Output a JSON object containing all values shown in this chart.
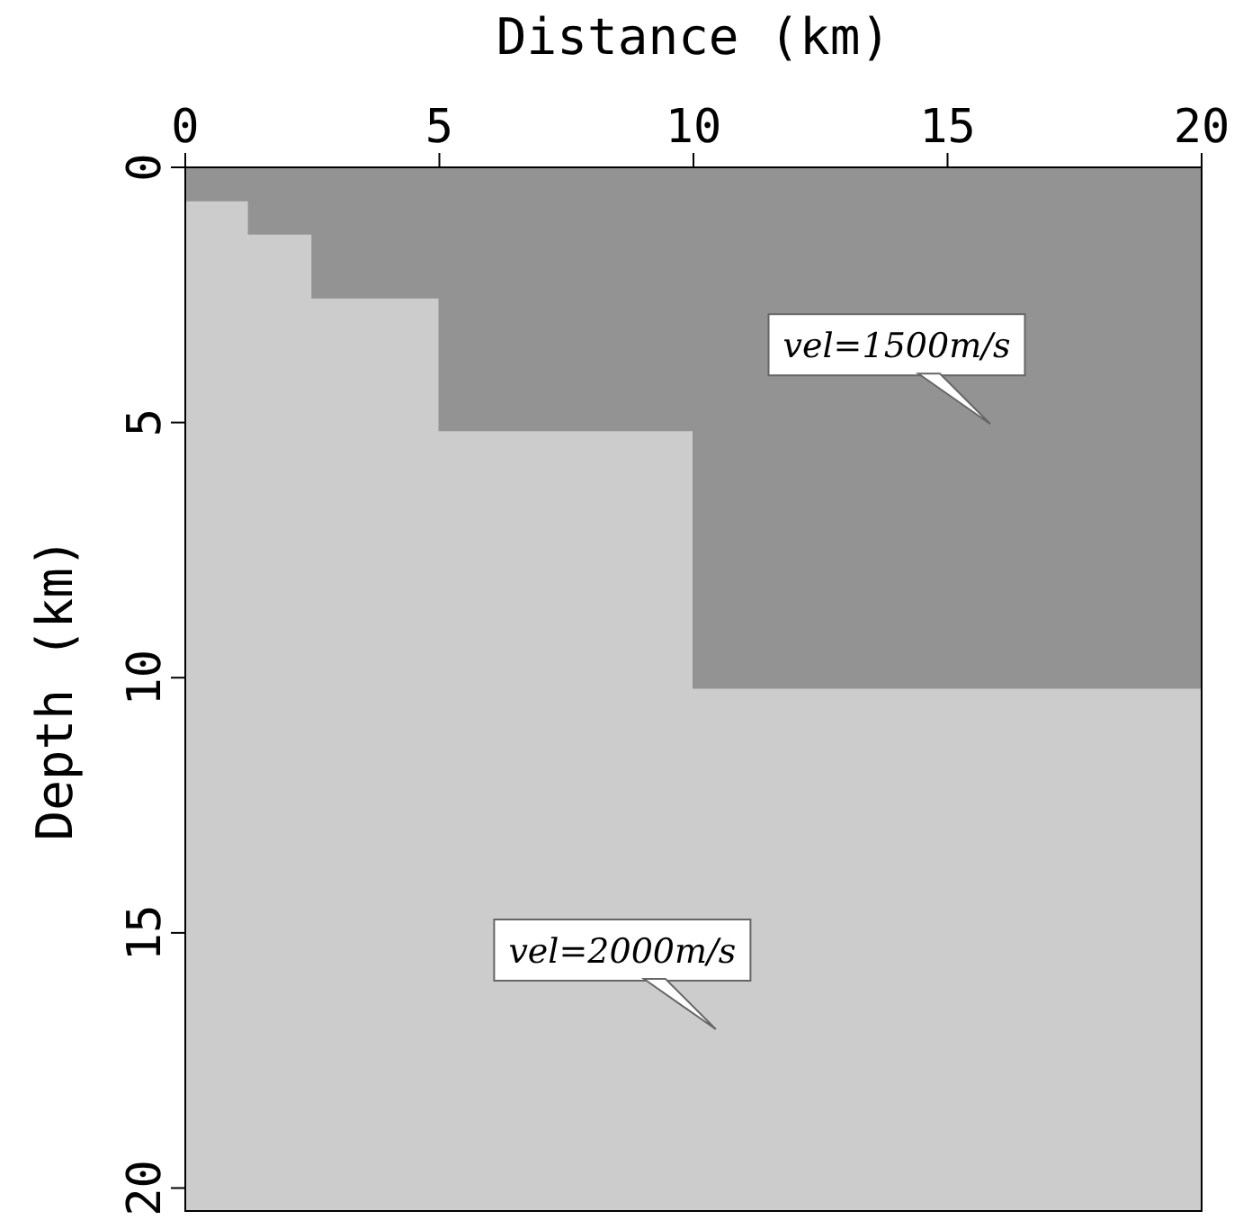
{
  "chart_data": {
    "type": "area",
    "xlabel": "Distance (km)",
    "ylabel": "Depth (km)",
    "x": [
      0,
      1.25,
      1.25,
      2.5,
      2.5,
      5,
      5,
      10,
      10,
      20
    ],
    "series": [
      {
        "color": "#939393",
        "values": [
          0.65,
          0.65,
          1.3,
          1.3,
          2.55,
          2.55,
          5.15,
          5.15,
          10.2,
          10.2
        ]
      }
    ],
    "bands": [
      {
        "axis": "y",
        "from": 0,
        "to": 20.45,
        "color": "#cccccc"
      }
    ],
    "xlim": [
      0,
      20
    ],
    "xticks": [
      0,
      5,
      10,
      15,
      20
    ],
    "ylim": [
      20.45,
      0
    ],
    "yticks": [
      0,
      5,
      10,
      15,
      20
    ],
    "annotations": [
      "vel=1500m/s",
      "vel=2000m/s"
    ]
  }
}
